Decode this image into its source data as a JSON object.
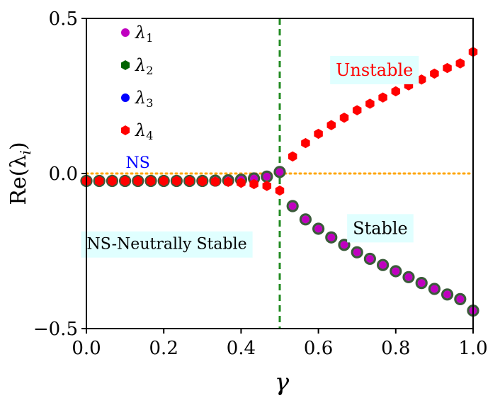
{
  "chart_data": {
    "type": "scatter",
    "title": "",
    "xlabel": "γ",
    "ylabel": "Re(λ",
    "ylabel_sub": "i",
    "ylabel_close": ")",
    "xlim": [
      0.0,
      1.0
    ],
    "ylim": [
      -0.5,
      0.5
    ],
    "x_ticks": [
      0.0,
      0.2,
      0.4,
      0.6,
      0.8,
      1.0
    ],
    "x_tick_labels": [
      "0.0",
      "0.2",
      "0.4",
      "0.6",
      "0.8",
      "1.0"
    ],
    "y_ticks": [
      -0.5,
      0.0,
      0.5
    ],
    "y_tick_labels": [
      "−0.5",
      "0.0",
      "0.5"
    ],
    "grid": false,
    "legend_position": "top-left",
    "neutral_line_y": 0.0,
    "critical_gamma": 0.5,
    "series": [
      {
        "name": "λ",
        "sub": "1",
        "marker": "circle",
        "color": "#c000c0",
        "x": [
          0.0,
          0.0333,
          0.0667,
          0.1,
          0.1333,
          0.1667,
          0.2,
          0.2333,
          0.2667,
          0.3,
          0.3333,
          0.3667,
          0.4,
          0.4333,
          0.4667,
          0.5,
          0.5333,
          0.5667,
          0.6,
          0.6333,
          0.6667,
          0.7,
          0.7333,
          0.7667,
          0.8,
          0.8333,
          0.8667,
          0.9,
          0.9333,
          0.9667,
          1.0
        ],
        "y": [
          -0.024,
          -0.024,
          -0.024,
          -0.024,
          -0.024,
          -0.024,
          -0.024,
          -0.024,
          -0.024,
          -0.024,
          -0.023,
          -0.022,
          -0.02,
          -0.016,
          -0.01,
          0.005,
          -0.105,
          -0.148,
          -0.178,
          -0.206,
          -0.23,
          -0.254,
          -0.275,
          -0.295,
          -0.315,
          -0.334,
          -0.353,
          -0.372,
          -0.39,
          -0.405,
          -0.442
        ]
      },
      {
        "name": "λ",
        "sub": "2",
        "marker": "hexagon",
        "color": "#006400",
        "x": [
          0.0,
          0.0333,
          0.0667,
          0.1,
          0.1333,
          0.1667,
          0.2,
          0.2333,
          0.2667,
          0.3,
          0.3333,
          0.3667,
          0.4,
          0.4333,
          0.4667,
          0.5,
          0.5333,
          0.5667,
          0.6,
          0.6333,
          0.6667,
          0.7,
          0.7333,
          0.7667,
          0.8,
          0.8333,
          0.8667,
          0.9,
          0.9333,
          0.9667,
          1.0
        ],
        "y": [
          -0.024,
          -0.024,
          -0.024,
          -0.024,
          -0.024,
          -0.024,
          -0.024,
          -0.024,
          -0.024,
          -0.024,
          -0.023,
          -0.022,
          -0.02,
          -0.016,
          -0.01,
          0.005,
          -0.105,
          -0.148,
          -0.178,
          -0.206,
          -0.23,
          -0.254,
          -0.275,
          -0.295,
          -0.315,
          -0.334,
          -0.353,
          -0.372,
          -0.39,
          -0.405,
          -0.442
        ]
      },
      {
        "name": "λ",
        "sub": "3",
        "marker": "circle",
        "color": "#0000ff",
        "x": [
          0.0,
          0.0333,
          0.0667,
          0.1,
          0.1333,
          0.1667,
          0.2,
          0.2333,
          0.2667,
          0.3,
          0.3333,
          0.3667,
          0.4,
          0.4333,
          0.4667,
          0.5,
          0.5333,
          0.5667,
          0.6,
          0.6333,
          0.6667,
          0.7,
          0.7333,
          0.7667,
          0.8,
          0.8333,
          0.8667,
          0.9,
          0.9333,
          0.9667,
          1.0
        ],
        "y": [
          -0.024,
          -0.024,
          -0.024,
          -0.024,
          -0.024,
          -0.024,
          -0.024,
          -0.024,
          -0.024,
          -0.025,
          -0.026,
          -0.027,
          -0.03,
          -0.034,
          -0.04,
          -0.055,
          0.055,
          0.098,
          0.128,
          0.156,
          0.18,
          0.204,
          0.225,
          0.245,
          0.265,
          0.284,
          0.303,
          0.322,
          0.34,
          0.355,
          0.392
        ]
      },
      {
        "name": "λ",
        "sub": "4",
        "marker": "hexagon",
        "color": "#ff0000",
        "x": [
          0.0,
          0.0333,
          0.0667,
          0.1,
          0.1333,
          0.1667,
          0.2,
          0.2333,
          0.2667,
          0.3,
          0.3333,
          0.3667,
          0.4,
          0.4333,
          0.4667,
          0.5,
          0.5333,
          0.5667,
          0.6,
          0.6333,
          0.6667,
          0.7,
          0.7333,
          0.7667,
          0.8,
          0.8333,
          0.8667,
          0.9,
          0.9333,
          0.9667,
          1.0
        ],
        "y": [
          -0.024,
          -0.024,
          -0.024,
          -0.024,
          -0.024,
          -0.024,
          -0.024,
          -0.024,
          -0.024,
          -0.025,
          -0.026,
          -0.027,
          -0.03,
          -0.034,
          -0.04,
          -0.055,
          0.055,
          0.098,
          0.128,
          0.156,
          0.18,
          0.204,
          0.225,
          0.245,
          0.265,
          0.284,
          0.303,
          0.322,
          0.34,
          0.355,
          0.392
        ]
      }
    ],
    "annotations": {
      "unstable": {
        "text": "Unstable",
        "x": 0.745,
        "y": 0.33
      },
      "stable": {
        "text": "Stable",
        "x": 0.76,
        "y": -0.18
      },
      "ns": {
        "text": "NS",
        "x": 0.133,
        "y": 0.032
      },
      "ns_full": {
        "text": "NS-Neutrally Stable",
        "x": 0.208,
        "y": -0.23
      }
    }
  },
  "colors": {
    "axis": "#000000",
    "critical_line": "#228b22",
    "neutral_line": "#ffa500",
    "label_box": "#e0ffff",
    "unstable_text": "#ff0000",
    "ns_text": "#0000ff",
    "stable_text": "#000000",
    "overlap_marker": "#3a5a3a"
  }
}
